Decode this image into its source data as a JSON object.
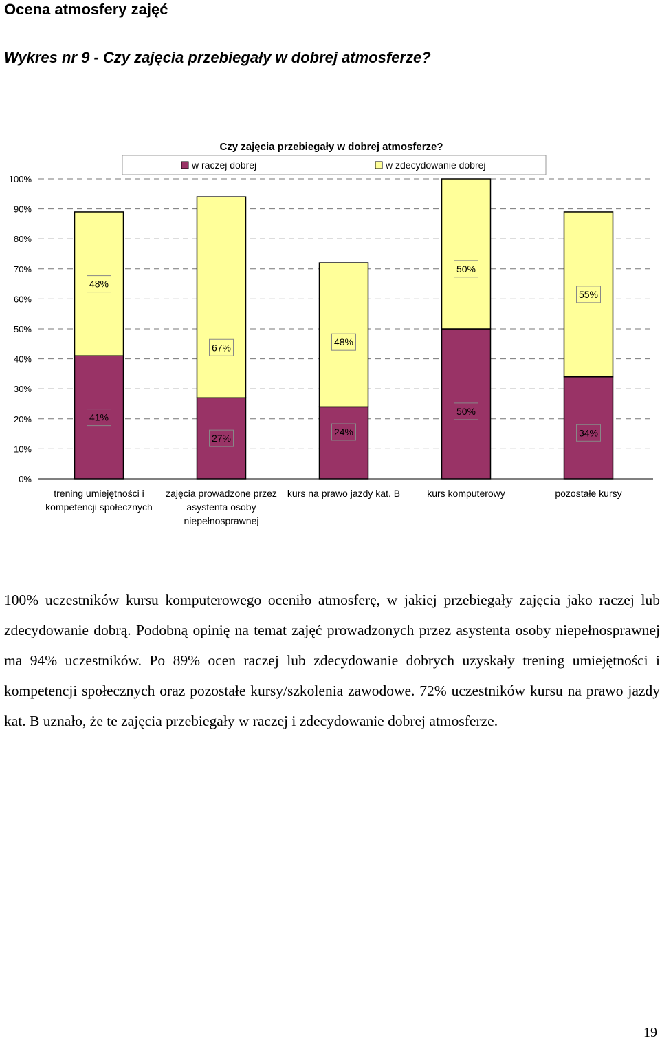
{
  "page": {
    "heading": "Ocena atmosfery zajęć",
    "subheading": "Wykres nr 9 - Czy  zajęcia przebiegały w dobrej atmosferze?",
    "paragraph": "100% uczestników kursu komputerowego oceniło atmosferę, w jakiej przebiegały zajęcia jako raczej lub zdecydowanie dobrą. Podobną opinię na temat zajęć prowadzonych przez asystenta osoby niepełnosprawnej ma 94% uczestników. Po 89% ocen raczej lub zdecydowanie dobrych uzyskały trening umiejętności i kompetencji społecznych oraz pozostałe kursy/szkolenia zawodowe. 72% uczestników kursu na prawo jazdy kat. B uznało, że te zajęcia przebiegały w raczej i zdecydowanie dobrej atmosferze.",
    "page_number": "19"
  },
  "chart_data": {
    "type": "bar",
    "stacked": true,
    "title": "Czy  zajęcia przebiegały w dobrej atmosferze?",
    "categories": [
      [
        "trening umiejętności i",
        "kompetencji społecznych"
      ],
      [
        "zajęcia prowadzone przez",
        "asystenta osoby",
        "niepełnosprawnej"
      ],
      [
        "kurs na prawo jazdy kat. B"
      ],
      [
        "kurs komputerowy"
      ],
      [
        "pozostałe kursy"
      ]
    ],
    "series": [
      {
        "name": "w raczej dobrej",
        "color": "#993366",
        "values": [
          41,
          27,
          24,
          50,
          34
        ],
        "labels": [
          "41%",
          "27%",
          "24%",
          "50%",
          "34%"
        ]
      },
      {
        "name": "w zdecydowanie dobrej",
        "color": "#ffff99",
        "values": [
          48,
          67,
          48,
          50,
          55
        ],
        "labels": [
          "48%",
          "67%",
          "48%",
          "50%",
          "55%"
        ]
      }
    ],
    "yticks": [
      "0%",
      "10%",
      "20%",
      "30%",
      "40%",
      "50%",
      "60%",
      "70%",
      "80%",
      "90%",
      "100%"
    ],
    "ylim": [
      0,
      100
    ],
    "grid": true,
    "legend": "top"
  }
}
